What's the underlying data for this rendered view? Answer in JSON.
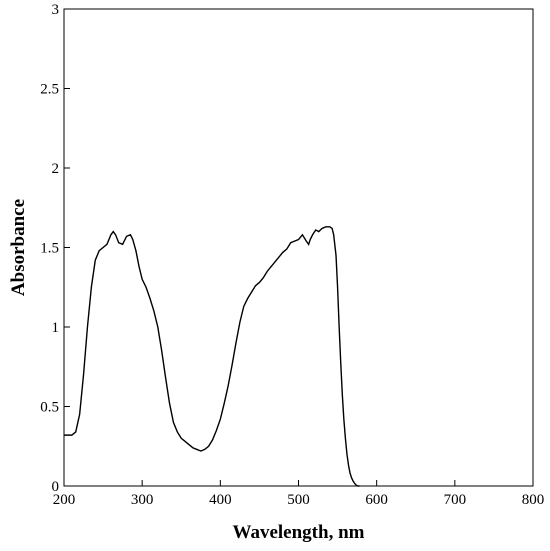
{
  "chart_data": {
    "type": "line",
    "title": "",
    "xlabel": "Wavelength, nm",
    "ylabel": "Absorbance",
    "xlim": [
      200,
      800
    ],
    "ylim": [
      0,
      3
    ],
    "xticks": [
      "200",
      "300",
      "400",
      "500",
      "600",
      "700",
      "800"
    ],
    "yticks": [
      "0",
      "0.5",
      "1",
      "1.5",
      "2",
      "2.5",
      "3"
    ],
    "grid": false,
    "legend": "none",
    "colors": {
      "line": "#000000",
      "axes": "#000000",
      "background": "#ffffff"
    },
    "series": [
      {
        "x": [
          200,
          210,
          215,
          220,
          225,
          230,
          235,
          240,
          245,
          250,
          255,
          260,
          263,
          266,
          270,
          275,
          280,
          285,
          288,
          292,
          296,
          300,
          305,
          310,
          315,
          320,
          325,
          330,
          335,
          340,
          345,
          350,
          355,
          360,
          365,
          370,
          375,
          380,
          385,
          390,
          395,
          400,
          405,
          410,
          415,
          420,
          425,
          430,
          435,
          440,
          445,
          450,
          455,
          460,
          465,
          470,
          475,
          480,
          485,
          490,
          495,
          500,
          505,
          510,
          513,
          515,
          518,
          522,
          526,
          530,
          535,
          540,
          543,
          545,
          548,
          550,
          552,
          554,
          556,
          558,
          560,
          562,
          564,
          566,
          568,
          570,
          572,
          574,
          576,
          578
        ],
        "y": [
          0.32,
          0.32,
          0.34,
          0.45,
          0.7,
          1.0,
          1.25,
          1.42,
          1.48,
          1.5,
          1.52,
          1.58,
          1.6,
          1.58,
          1.53,
          1.52,
          1.57,
          1.58,
          1.55,
          1.48,
          1.38,
          1.3,
          1.25,
          1.18,
          1.1,
          1.0,
          0.85,
          0.68,
          0.52,
          0.4,
          0.34,
          0.3,
          0.28,
          0.26,
          0.24,
          0.23,
          0.22,
          0.23,
          0.25,
          0.29,
          0.35,
          0.42,
          0.52,
          0.63,
          0.76,
          0.9,
          1.03,
          1.13,
          1.18,
          1.22,
          1.26,
          1.28,
          1.31,
          1.35,
          1.38,
          1.41,
          1.44,
          1.47,
          1.49,
          1.53,
          1.54,
          1.55,
          1.58,
          1.54,
          1.52,
          1.55,
          1.58,
          1.61,
          1.6,
          1.62,
          1.63,
          1.63,
          1.62,
          1.58,
          1.45,
          1.25,
          1.0,
          0.78,
          0.58,
          0.42,
          0.3,
          0.2,
          0.13,
          0.08,
          0.05,
          0.03,
          0.015,
          0.005,
          0.0,
          0.0
        ]
      }
    ]
  }
}
